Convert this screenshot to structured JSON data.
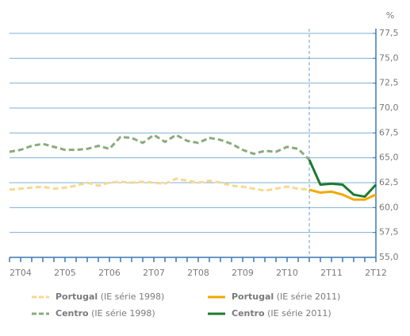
{
  "chart_data": {
    "type": "line",
    "y_unit": "%",
    "categories": [
      "1T04",
      "2T04",
      "3T04",
      "4T04",
      "1T05",
      "2T05",
      "3T05",
      "4T05",
      "1T06",
      "2T06",
      "3T06",
      "4T06",
      "1T07",
      "2T07",
      "3T07",
      "4T07",
      "1T08",
      "2T08",
      "3T08",
      "4T08",
      "1T09",
      "2T09",
      "3T09",
      "4T09",
      "1T10",
      "2T10",
      "3T10",
      "4T10",
      "1T11",
      "2T11",
      "3T11",
      "4T11",
      "1T12",
      "2T12"
    ],
    "category_labels": [
      null,
      "2T04",
      null,
      null,
      null,
      "2T05",
      null,
      null,
      null,
      "2T06",
      null,
      null,
      null,
      "2T07",
      null,
      null,
      null,
      "2T08",
      null,
      null,
      null,
      "2T09",
      null,
      null,
      null,
      "2T10",
      null,
      null,
      null,
      "2T11",
      null,
      null,
      null,
      "2T12"
    ],
    "ylim": [
      55,
      77.5
    ],
    "yticks": [
      {
        "value": 55,
        "label": "55,0"
      },
      {
        "value": 57.5,
        "label": "57,5"
      },
      {
        "value": 60,
        "label": "60,0"
      },
      {
        "value": 62.5,
        "label": "62,5"
      },
      {
        "value": 65,
        "label": "65,0"
      },
      {
        "value": 67.5,
        "label": "67,5"
      },
      {
        "value": 70,
        "label": "70,0"
      },
      {
        "value": 72.5,
        "label": "72,5"
      },
      {
        "value": 75,
        "label": "75,0"
      },
      {
        "value": 77.5,
        "label": "77,5"
      }
    ],
    "grid": true,
    "series": [
      {
        "name": "Portugal",
        "series_label": "(IE série 1998)",
        "color": "#f8d88e",
        "dashed": true,
        "values": [
          61.8,
          61.9,
          62.0,
          62.1,
          61.9,
          62.0,
          62.2,
          62.5,
          62.2,
          62.5,
          62.6,
          62.5,
          62.6,
          62.5,
          62.4,
          62.9,
          62.7,
          62.5,
          62.7,
          62.5,
          62.2,
          62.1,
          61.9,
          61.7,
          61.9,
          62.1,
          61.9,
          61.8,
          null,
          null,
          null,
          null,
          null,
          null
        ]
      },
      {
        "name": "Portugal",
        "series_label": "(IE série 2011)",
        "color": "#f2a900",
        "dashed": false,
        "values": [
          null,
          null,
          null,
          null,
          null,
          null,
          null,
          null,
          null,
          null,
          null,
          null,
          null,
          null,
          null,
          null,
          null,
          null,
          null,
          null,
          null,
          null,
          null,
          null,
          null,
          null,
          null,
          61.8,
          61.5,
          61.6,
          61.3,
          60.8,
          60.8,
          61.3
        ]
      },
      {
        "name": "Centro",
        "series_label": "(IE série 1998)",
        "color": "#8aab7c",
        "dashed": true,
        "values": [
          65.6,
          65.8,
          66.2,
          66.4,
          66.1,
          65.8,
          65.8,
          65.9,
          66.2,
          65.9,
          67.1,
          67.0,
          66.5,
          67.3,
          66.6,
          67.3,
          66.7,
          66.5,
          67.0,
          66.8,
          66.4,
          65.8,
          65.4,
          65.7,
          65.6,
          66.1,
          65.9,
          64.8,
          null,
          null,
          null,
          null,
          null,
          null
        ]
      },
      {
        "name": "Centro",
        "series_label": "(IE série 2011)",
        "color": "#1e7a2e",
        "dashed": false,
        "values": [
          null,
          null,
          null,
          null,
          null,
          null,
          null,
          null,
          null,
          null,
          null,
          null,
          null,
          null,
          null,
          null,
          null,
          null,
          null,
          null,
          null,
          null,
          null,
          null,
          null,
          null,
          null,
          64.8,
          62.3,
          62.4,
          62.3,
          61.3,
          61.1,
          62.3
        ]
      }
    ]
  }
}
